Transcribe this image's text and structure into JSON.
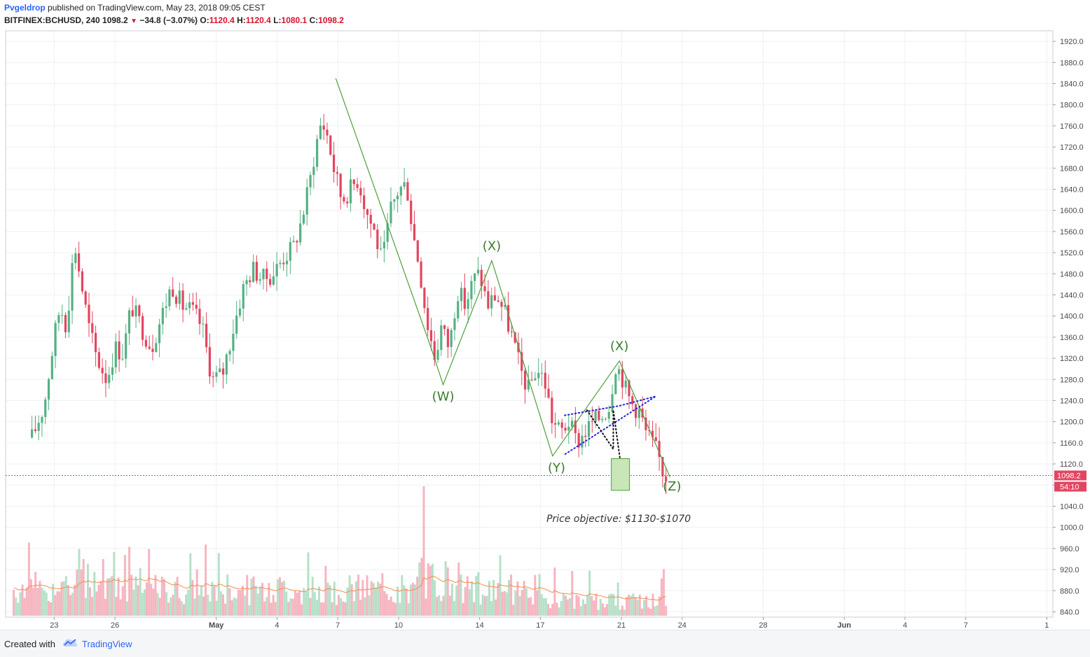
{
  "header": {
    "author": "Pvgeldrop",
    "published_text": "published on TradingView.com, May 23, 2018 09:05 CEST",
    "symbol": "BITFINEX:BCHUSD, 240",
    "last": "1098.2",
    "change": "−34.8 (−3.07%)",
    "open_label": "O:",
    "open": "1120.4",
    "high_label": "H:",
    "high": "1120.4",
    "low_label": "L:",
    "low": "1080.1",
    "close_label": "C:",
    "close": "1098.2"
  },
  "footer": {
    "created_with": "Created with",
    "brand": "TradingView"
  },
  "colors": {
    "up": "#55b183",
    "down": "#e2465f",
    "wave": "#4f9f3a",
    "wave_label": "#3c7a2c",
    "dotted_blue": "#2323d9",
    "ma": "#f58c4a",
    "price_line": "#e2465f"
  },
  "chart_data": {
    "type": "candlestick",
    "title": "",
    "y_ticks": [
      840,
      880,
      920,
      960,
      1000,
      1040,
      1080,
      1120,
      1160,
      1200,
      1240,
      1280,
      1320,
      1360,
      1400,
      1440,
      1480,
      1520,
      1560,
      1600,
      1640,
      1680,
      1720,
      1760,
      1800,
      1840,
      1880,
      1920
    ],
    "ylim": [
      830,
      1940
    ],
    "x_ticks": [
      {
        "label": "23",
        "day": 23
      },
      {
        "label": "26",
        "day": 26
      },
      {
        "label": "May",
        "day": 31
      },
      {
        "label": "4",
        "day": 34
      },
      {
        "label": "7",
        "day": 37
      },
      {
        "label": "10",
        "day": 40
      },
      {
        "label": "14",
        "day": 44
      },
      {
        "label": "17",
        "day": 47
      },
      {
        "label": "21",
        "day": 51
      },
      {
        "label": "24",
        "day": 54
      },
      {
        "label": "28",
        "day": 58
      },
      {
        "label": "Jun",
        "day": 62
      },
      {
        "label": "4",
        "day": 65
      },
      {
        "label": "7",
        "day": 68
      },
      {
        "label": "1",
        "day": 72
      }
    ],
    "price_series": [
      [
        21.9,
        1170
      ],
      [
        22.5,
        1230
      ],
      [
        23.0,
        1360
      ],
      [
        23.3,
        1420
      ],
      [
        23.6,
        1380
      ],
      [
        24.0,
        1540
      ],
      [
        24.3,
        1470
      ],
      [
        24.7,
        1380
      ],
      [
        25.1,
        1320
      ],
      [
        25.6,
        1280
      ],
      [
        26.0,
        1340
      ],
      [
        26.4,
        1330
      ],
      [
        26.8,
        1420
      ],
      [
        27.3,
        1380
      ],
      [
        27.8,
        1340
      ],
      [
        28.3,
        1400
      ],
      [
        28.8,
        1460
      ],
      [
        29.3,
        1420
      ],
      [
        29.8,
        1410
      ],
      [
        30.3,
        1380
      ],
      [
        30.8,
        1280
      ],
      [
        31.3,
        1290
      ],
      [
        31.8,
        1370
      ],
      [
        32.3,
        1450
      ],
      [
        32.8,
        1490
      ],
      [
        33.3,
        1470
      ],
      [
        33.8,
        1480
      ],
      [
        34.3,
        1510
      ],
      [
        34.8,
        1530
      ],
      [
        35.2,
        1580
      ],
      [
        35.6,
        1650
      ],
      [
        35.9,
        1720
      ],
      [
        36.2,
        1770
      ],
      [
        36.5,
        1740
      ],
      [
        36.8,
        1680
      ],
      [
        37.2,
        1620
      ],
      [
        37.6,
        1640
      ],
      [
        38.0,
        1660
      ],
      [
        38.4,
        1600
      ],
      [
        38.8,
        1560
      ],
      [
        39.2,
        1500
      ],
      [
        39.6,
        1600
      ],
      [
        40.0,
        1640
      ],
      [
        40.4,
        1650
      ],
      [
        40.7,
        1560
      ],
      [
        41.0,
        1500
      ],
      [
        41.4,
        1390
      ],
      [
        41.8,
        1320
      ],
      [
        42.1,
        1380
      ],
      [
        42.5,
        1340
      ],
      [
        42.9,
        1450
      ],
      [
        43.3,
        1420
      ],
      [
        43.7,
        1470
      ],
      [
        44.0,
        1480
      ],
      [
        44.4,
        1420
      ],
      [
        44.8,
        1440
      ],
      [
        45.2,
        1410
      ],
      [
        45.6,
        1360
      ],
      [
        46.0,
        1300
      ],
      [
        46.4,
        1260
      ],
      [
        46.8,
        1300
      ],
      [
        47.2,
        1280
      ],
      [
        47.6,
        1200
      ],
      [
        48.0,
        1180
      ],
      [
        48.4,
        1200
      ],
      [
        48.8,
        1160
      ],
      [
        49.2,
        1180
      ],
      [
        49.6,
        1200
      ],
      [
        50.0,
        1210
      ],
      [
        50.4,
        1230
      ],
      [
        50.7,
        1310
      ],
      [
        51.0,
        1290
      ],
      [
        51.3,
        1250
      ],
      [
        51.6,
        1230
      ],
      [
        51.9,
        1220
      ],
      [
        52.2,
        1180
      ],
      [
        52.5,
        1160
      ],
      [
        52.8,
        1140
      ],
      [
        53.0,
        1110
      ],
      [
        53.2,
        1098
      ]
    ],
    "price_line": 1098.2,
    "price_label": "1098.2",
    "countdown_label": "54:10",
    "wave_path": [
      [
        36.9,
        1850
      ],
      [
        41.6,
        1340
      ],
      [
        42.2,
        1270
      ],
      [
        44.6,
        1505
      ],
      [
        47.6,
        1135
      ],
      [
        50.9,
        1315
      ],
      [
        53.4,
        1095
      ]
    ],
    "wave_labels": [
      {
        "text": "(W)",
        "day": 42.2,
        "price": 1240
      },
      {
        "text": "(X)",
        "day": 44.6,
        "price": 1525
      },
      {
        "text": "(Y)",
        "day": 47.8,
        "price": 1105
      },
      {
        "text": "(X)",
        "day": 50.9,
        "price": 1335
      },
      {
        "text": "(Z)",
        "day": 53.5,
        "price": 1070
      }
    ],
    "annotation": "Price objective: $1130-$1070",
    "target_box": {
      "from_price": 1070,
      "to_price": 1130
    }
  }
}
